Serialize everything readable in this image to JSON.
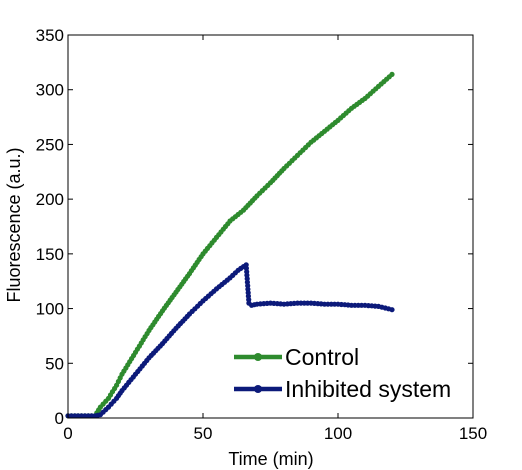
{
  "chart_data": {
    "type": "line",
    "title": "",
    "xlabel": "Time (min)",
    "ylabel": "Fluorescence (a.u.)",
    "xlim": [
      0,
      150
    ],
    "ylim": [
      0,
      350
    ],
    "xticks": [
      0,
      50,
      100,
      150
    ],
    "yticks": [
      0,
      50,
      100,
      150,
      200,
      250,
      300,
      350
    ],
    "grid": false,
    "legend_position": "bottom-right",
    "series": [
      {
        "name": "Control",
        "color": "#2e8b2e",
        "x": [
          0,
          5,
          10,
          12,
          15,
          18,
          20,
          25,
          30,
          35,
          40,
          45,
          50,
          55,
          60,
          65,
          70,
          75,
          80,
          85,
          90,
          95,
          100,
          105,
          110,
          115,
          120
        ],
        "y": [
          2,
          2,
          2,
          10,
          18,
          30,
          40,
          60,
          80,
          98,
          115,
          132,
          150,
          165,
          180,
          190,
          203,
          215,
          228,
          240,
          252,
          262,
          272,
          283,
          292,
          303,
          314
        ]
      },
      {
        "name": "Inhibited system",
        "color": "#0c1a7a",
        "x": [
          0,
          5,
          10,
          12,
          15,
          18,
          20,
          25,
          30,
          35,
          40,
          45,
          50,
          55,
          60,
          63,
          66,
          67,
          68,
          70,
          75,
          80,
          85,
          90,
          95,
          100,
          105,
          110,
          115,
          120
        ],
        "y": [
          2,
          2,
          2,
          3,
          10,
          18,
          25,
          40,
          55,
          68,
          82,
          95,
          107,
          118,
          128,
          135,
          140,
          105,
          103,
          104,
          105,
          104,
          105,
          105,
          104,
          104,
          103,
          103,
          102,
          99
        ]
      }
    ]
  }
}
